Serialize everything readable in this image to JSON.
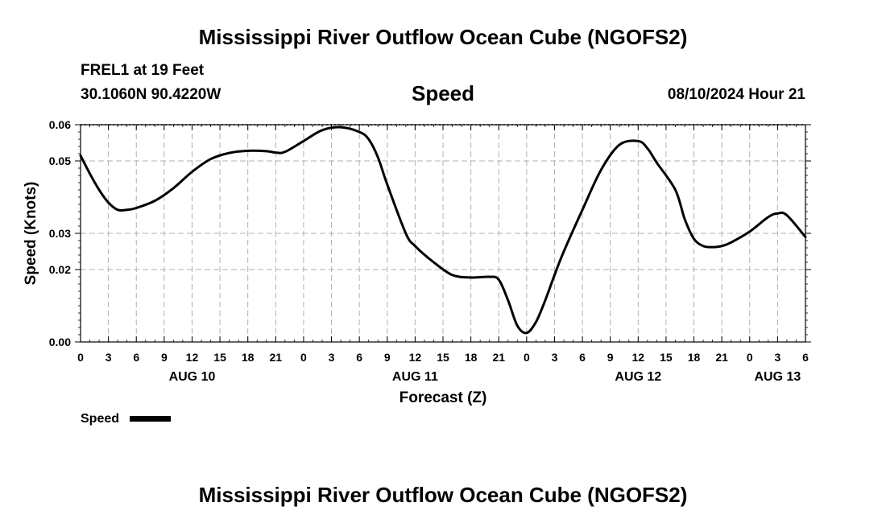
{
  "page": {
    "title_top": "Mississippi River Outflow Ocean Cube (NGOFS2)",
    "title_bottom": "Mississippi River Outflow Ocean Cube (NGOFS2)",
    "station": "FREL1 at 19 Feet",
    "coords": "30.1060N  90.4220W",
    "datetime": "08/10/2024 Hour 21"
  },
  "chart_data": {
    "type": "line",
    "title": "Speed",
    "xlabel": "Forecast (Z)",
    "ylabel": "Speed (Knots)",
    "x_unit": "hours from 00Z Aug 10",
    "xlim": [
      0,
      78
    ],
    "ylim": [
      0.0,
      0.06
    ],
    "x_ticks": [
      0,
      3,
      6,
      9,
      12,
      15,
      18,
      21,
      24,
      27,
      30,
      33,
      36,
      39,
      42,
      45,
      48,
      51,
      54,
      57,
      60,
      63,
      66,
      69,
      72,
      75,
      78
    ],
    "x_tick_labels": [
      "0",
      "3",
      "6",
      "9",
      "12",
      "15",
      "18",
      "21",
      "0",
      "3",
      "6",
      "9",
      "12",
      "15",
      "18",
      "21",
      "0",
      "3",
      "6",
      "9",
      "12",
      "15",
      "18",
      "21",
      "0",
      "3",
      "6"
    ],
    "day_labels": [
      {
        "x": 12,
        "label": "AUG 10"
      },
      {
        "x": 36,
        "label": "AUG 11"
      },
      {
        "x": 60,
        "label": "AUG 12"
      },
      {
        "x": 75,
        "label": "AUG 13"
      }
    ],
    "y_ticks": [
      0.0,
      0.02,
      0.03,
      0.05,
      0.06
    ],
    "y_tick_labels": [
      "0.00",
      "0.02",
      "0.03",
      "0.05",
      "0.06"
    ],
    "grid": true,
    "legend": {
      "position": "bottom-left",
      "entries": [
        "Speed"
      ]
    },
    "series": [
      {
        "name": "Speed",
        "color": "#000000",
        "x": [
          0,
          1,
          2,
          3,
          4,
          5,
          6,
          8,
          10,
          12,
          14,
          16,
          18,
          20,
          21,
          22,
          24,
          26,
          28,
          30,
          31,
          32,
          33,
          35,
          36,
          38,
          40,
          42,
          44,
          45,
          46,
          47,
          48,
          49,
          50,
          51,
          52,
          54,
          56,
          58,
          60,
          61,
          62,
          64,
          65,
          66,
          67,
          68,
          69,
          70,
          72,
          74,
          75,
          76,
          78
        ],
        "values": [
          0.0515,
          0.0465,
          0.042,
          0.0385,
          0.0365,
          0.0365,
          0.037,
          0.039,
          0.0425,
          0.047,
          0.0505,
          0.0522,
          0.0528,
          0.0527,
          0.0523,
          0.0525,
          0.0555,
          0.0585,
          0.0593,
          0.058,
          0.056,
          0.051,
          0.0435,
          0.03,
          0.0265,
          0.022,
          0.0185,
          0.0178,
          0.018,
          0.0172,
          0.0115,
          0.0045,
          0.0025,
          0.0055,
          0.0115,
          0.0185,
          0.025,
          0.0365,
          0.0475,
          0.0545,
          0.0555,
          0.0535,
          0.0495,
          0.042,
          0.034,
          0.0285,
          0.0265,
          0.0262,
          0.0265,
          0.0275,
          0.0305,
          0.0345,
          0.0355,
          0.035,
          0.029
        ]
      }
    ]
  }
}
